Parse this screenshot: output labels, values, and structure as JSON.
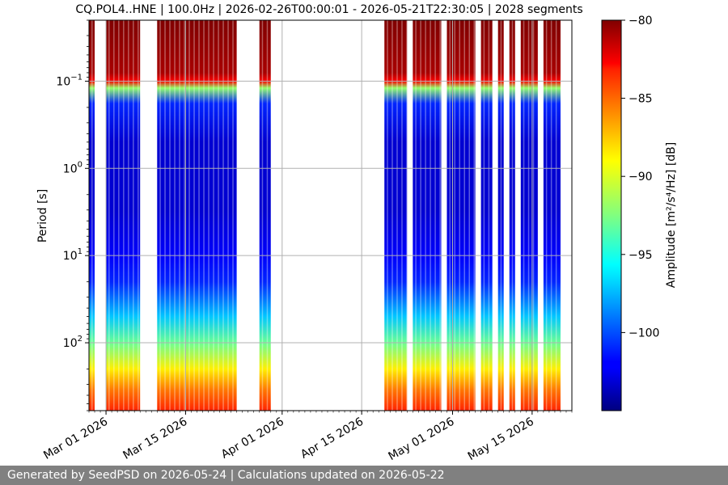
{
  "chart_data": {
    "type": "heatmap",
    "title": "CQ.POL4..HNE | 100.0Hz | 2026-02-26T00:00:01 - 2026-05-21T22:30:05 | 2028 segments",
    "ylabel": "Period [s]",
    "y_scale": "log",
    "y_inverted": true,
    "ylim": [
      0.02,
      600
    ],
    "y_ticks": [
      {
        "value": 0.1,
        "base": "10",
        "exp": "−1"
      },
      {
        "value": 1,
        "base": "10",
        "exp": "0"
      },
      {
        "value": 10,
        "base": "10",
        "exp": "1"
      },
      {
        "value": 100,
        "base": "10",
        "exp": "2"
      }
    ],
    "xlim": [
      "2026-02-26",
      "2026-05-22"
    ],
    "x_ticks": [
      {
        "date": "2026-03-01",
        "label": "Mar 01 2026"
      },
      {
        "date": "2026-03-15",
        "label": "Mar 15 2026"
      },
      {
        "date": "2026-04-01",
        "label": "Apr 01 2026"
      },
      {
        "date": "2026-04-15",
        "label": "Apr 15 2026"
      },
      {
        "date": "2026-05-01",
        "label": "May 01 2026"
      },
      {
        "date": "2026-05-15",
        "label": "May 15 2026"
      }
    ],
    "grid": true,
    "data_spans": [
      [
        "2026-02-26",
        "2026-02-27"
      ],
      [
        "2026-02-29",
        "2026-03-07"
      ],
      [
        "2026-03-10",
        "2026-03-24"
      ],
      [
        "2026-03-28",
        "2026-03-30"
      ],
      [
        "2026-04-19",
        "2026-04-23"
      ],
      [
        "2026-04-24",
        "2026-04-29"
      ],
      [
        "2026-04-30",
        "2026-05-05"
      ],
      [
        "2026-05-06",
        "2026-05-08"
      ],
      [
        "2026-05-09",
        "2026-05-10"
      ],
      [
        "2026-05-11",
        "2026-05-12"
      ],
      [
        "2026-05-13",
        "2026-05-16"
      ],
      [
        "2026-05-17",
        "2026-05-20"
      ]
    ],
    "profile": [
      {
        "period": 0.02,
        "db": -80
      },
      {
        "period": 0.08,
        "db": -81
      },
      {
        "period": 0.1,
        "db": -83
      },
      {
        "period": 0.12,
        "db": -92
      },
      {
        "period": 0.18,
        "db": -101
      },
      {
        "period": 0.5,
        "db": -103
      },
      {
        "period": 3,
        "db": -103
      },
      {
        "period": 10,
        "db": -102
      },
      {
        "period": 20,
        "db": -101
      },
      {
        "period": 50,
        "db": -97
      },
      {
        "period": 100,
        "db": -93
      },
      {
        "period": 200,
        "db": -89
      },
      {
        "period": 350,
        "db": -86
      },
      {
        "period": 600,
        "db": -84
      }
    ],
    "colorbar": {
      "label": "Amplitude [m²/s⁴/Hz] [dB]",
      "min": -105,
      "max": -80,
      "ticks": [
        "−80",
        "−85",
        "−90",
        "−95",
        "−100"
      ],
      "tick_values": [
        -80,
        -85,
        -90,
        -95,
        -100
      ],
      "colormap": "jet"
    }
  },
  "footer": {
    "text": "Generated by SeedPSD on 2026-05-24 | Calculations updated on 2026-05-22"
  }
}
